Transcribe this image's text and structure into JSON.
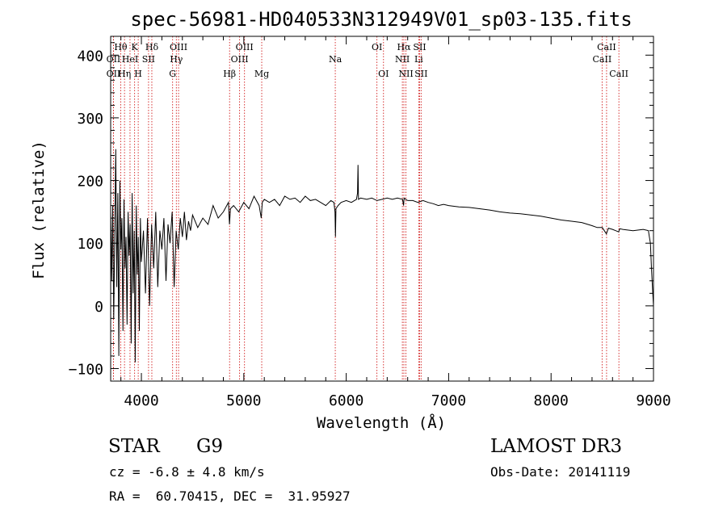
{
  "chart_data": {
    "type": "line",
    "title": "spec-56981-HD040533N312949V01_sp03-135.fits",
    "xlabel": "Wavelength (Å)",
    "ylabel": "Flux (relative)",
    "xlim": [
      3700,
      9000
    ],
    "ylim": [
      -120,
      430
    ],
    "x_ticks": [
      4000,
      5000,
      6000,
      7000,
      8000,
      9000
    ],
    "y_ticks": [
      -100,
      0,
      100,
      200,
      300,
      400
    ],
    "line_color": "#000000",
    "marker_color": "#cc0000",
    "series": [
      {
        "name": "flux",
        "x": [
          3700,
          3710,
          3720,
          3730,
          3740,
          3750,
          3760,
          3770,
          3780,
          3790,
          3800,
          3810,
          3820,
          3830,
          3840,
          3850,
          3860,
          3870,
          3880,
          3890,
          3900,
          3910,
          3920,
          3930,
          3940,
          3950,
          3960,
          3970,
          3980,
          3990,
          4000,
          4020,
          4040,
          4060,
          4080,
          4100,
          4120,
          4140,
          4160,
          4180,
          4200,
          4220,
          4240,
          4260,
          4280,
          4300,
          4320,
          4340,
          4360,
          4380,
          4400,
          4420,
          4440,
          4460,
          4480,
          4500,
          4550,
          4600,
          4650,
          4700,
          4750,
          4800,
          4850,
          4860,
          4870,
          4900,
          4950,
          5000,
          5050,
          5100,
          5150,
          5170,
          5180,
          5200,
          5250,
          5300,
          5350,
          5400,
          5450,
          5500,
          5550,
          5600,
          5650,
          5700,
          5750,
          5800,
          5850,
          5880,
          5890,
          5895,
          5900,
          5920,
          5950,
          6000,
          6050,
          6100,
          6110,
          6115,
          6120,
          6140,
          6200,
          6250,
          6300,
          6350,
          6400,
          6450,
          6500,
          6550,
          6560,
          6565,
          6580,
          6600,
          6650,
          6700,
          6750,
          6800,
          6850,
          6900,
          6950,
          7000,
          7100,
          7200,
          7300,
          7400,
          7500,
          7600,
          7700,
          7800,
          7900,
          8000,
          8100,
          8200,
          8300,
          8400,
          8450,
          8500,
          8540,
          8560,
          8600,
          8660,
          8670,
          8700,
          8800,
          8900,
          8950,
          8960,
          8970,
          8980,
          8990,
          9000
        ],
        "y": [
          150,
          40,
          160,
          -20,
          120,
          250,
          30,
          180,
          -80,
          200,
          90,
          140,
          -40,
          170,
          60,
          110,
          -30,
          150,
          80,
          130,
          -60,
          180,
          20,
          120,
          -90,
          160,
          50,
          110,
          -40,
          140,
          70,
          120,
          20,
          140,
          0,
          130,
          60,
          150,
          30,
          120,
          90,
          140,
          40,
          130,
          100,
          150,
          30,
          120,
          90,
          140,
          110,
          150,
          105,
          135,
          120,
          145,
          125,
          140,
          130,
          160,
          140,
          150,
          165,
          130,
          155,
          160,
          150,
          165,
          155,
          175,
          160,
          140,
          165,
          170,
          165,
          170,
          160,
          175,
          170,
          172,
          165,
          175,
          168,
          170,
          165,
          160,
          168,
          165,
          150,
          110,
          155,
          160,
          165,
          168,
          165,
          170,
          180,
          225,
          170,
          172,
          170,
          172,
          168,
          170,
          172,
          170,
          172,
          170,
          160,
          172,
          170,
          168,
          168,
          165,
          168,
          165,
          163,
          160,
          162,
          160,
          158,
          157,
          155,
          153,
          150,
          148,
          147,
          145,
          143,
          140,
          137,
          135,
          133,
          128,
          125,
          125,
          115,
          124,
          122,
          118,
          123,
          122,
          120,
          122,
          120,
          110,
          100,
          60,
          30,
          0
        ]
      }
    ],
    "lines": [
      {
        "label": "OII",
        "wl": 3727,
        "row": 2
      },
      {
        "label": "OII",
        "wl": 3727,
        "row": 3
      },
      {
        "label": "Hθ",
        "wl": 3798,
        "row": 1
      },
      {
        "label": "Hη",
        "wl": 3835,
        "row": 3
      },
      {
        "label": "HeI",
        "wl": 3889,
        "row": 2
      },
      {
        "label": "K",
        "wl": 3934,
        "row": 1
      },
      {
        "label": "H",
        "wl": 3969,
        "row": 3
      },
      {
        "label": "SII",
        "wl": 4070,
        "row": 2
      },
      {
        "label": "Hδ",
        "wl": 4102,
        "row": 1
      },
      {
        "label": "OIII",
        "wl": 4363,
        "row": 1
      },
      {
        "label": "Hγ",
        "wl": 4341,
        "row": 2
      },
      {
        "label": "G",
        "wl": 4305,
        "row": 3
      },
      {
        "label": "Hβ",
        "wl": 4861,
        "row": 3
      },
      {
        "label": "OIII",
        "wl": 4959,
        "row": 2
      },
      {
        "label": "OIII",
        "wl": 5007,
        "row": 1
      },
      {
        "label": "Mg",
        "wl": 5175,
        "row": 3
      },
      {
        "label": "Na",
        "wl": 5893,
        "row": 2
      },
      {
        "label": "OI",
        "wl": 6300,
        "row": 1
      },
      {
        "label": "OI",
        "wl": 6364,
        "row": 3
      },
      {
        "label": "NII",
        "wl": 6548,
        "row": 2
      },
      {
        "label": "Hα",
        "wl": 6563,
        "row": 1
      },
      {
        "label": "NII",
        "wl": 6583,
        "row": 3
      },
      {
        "label": "Li",
        "wl": 6708,
        "row": 2
      },
      {
        "label": "SII",
        "wl": 6717,
        "row": 1
      },
      {
        "label": "SII",
        "wl": 6731,
        "row": 3
      },
      {
        "label": "CaII",
        "wl": 8498,
        "row": 2
      },
      {
        "label": "CaII",
        "wl": 8542,
        "row": 1
      },
      {
        "label": "CaII",
        "wl": 8662,
        "row": 3
      }
    ]
  },
  "info": {
    "object_type": "STAR",
    "subclass": "G9",
    "survey": "LAMOST DR3",
    "redshift": "cz = -6.8 ± 4.8 km/s",
    "obs_date": "Obs-Date: 20141119",
    "coords": "RA =  60.70415, DEC =  31.95927"
  }
}
